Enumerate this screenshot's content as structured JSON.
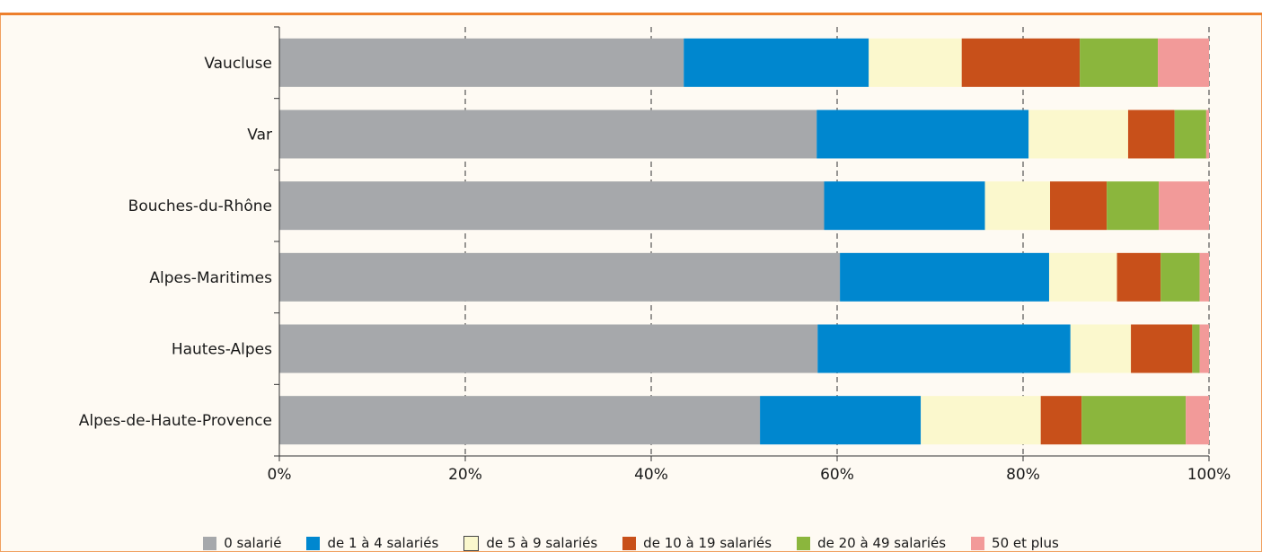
{
  "chart_data": {
    "type": "bar",
    "orientation": "horizontal",
    "stacked": true,
    "categories": [
      "Vaucluse",
      "Var",
      "Bouches-du-Rhône",
      "Alpes-Maritimes",
      "Hautes-Alpes",
      "Alpes-de-Haute-Provence"
    ],
    "series": [
      {
        "name": "0 salarié",
        "color": "#a6a8ab",
        "values": [
          43.5,
          57.8,
          58.6,
          60.3,
          57.9,
          51.7
        ]
      },
      {
        "name": "de 1 à 4 salariés",
        "color": "#0087cf",
        "values": [
          19.9,
          22.8,
          17.3,
          22.5,
          27.2,
          17.3
        ]
      },
      {
        "name": "de 5 à 9 salariés",
        "color": "#fbf8cd",
        "values": [
          10.0,
          10.7,
          7.0,
          7.3,
          6.5,
          12.9
        ]
      },
      {
        "name": "de 10 à 19 salariés",
        "color": "#c8501a",
        "values": [
          12.7,
          5.0,
          6.1,
          4.7,
          6.6,
          4.4
        ]
      },
      {
        "name": "de 20 à 49 salariés",
        "color": "#8bb63d",
        "values": [
          8.4,
          3.4,
          5.6,
          4.2,
          0.8,
          11.2
        ]
      },
      {
        "name": "50 et plus",
        "color": "#f29a99",
        "values": [
          5.5,
          0.3,
          5.4,
          1.0,
          1.0,
          2.5
        ]
      }
    ],
    "x_ticks": [
      "0%",
      "20%",
      "40%",
      "60%",
      "80%",
      "100%"
    ],
    "xlim": [
      0,
      100
    ],
    "grid": "vertical dashed",
    "legend_position": "bottom",
    "title": "",
    "xlabel": "",
    "ylabel": ""
  }
}
